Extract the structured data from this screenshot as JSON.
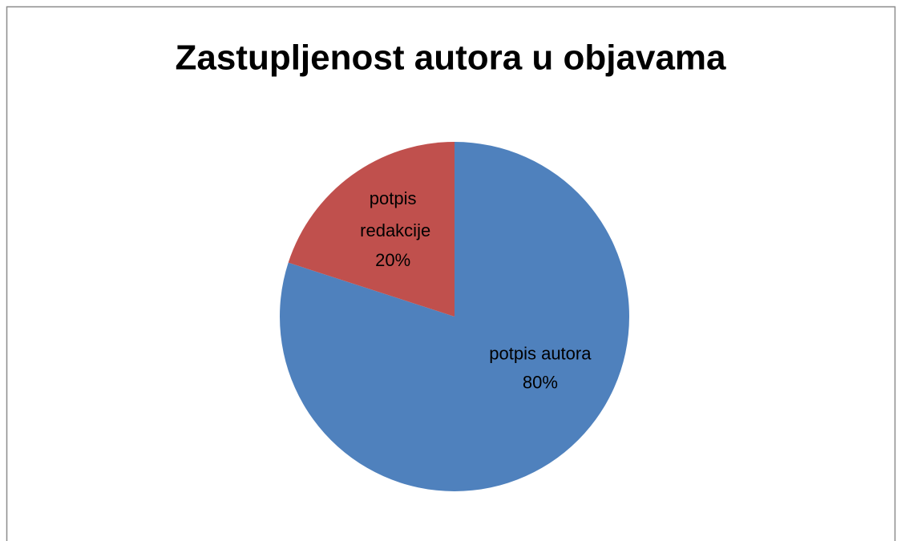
{
  "chart_data": {
    "type": "pie",
    "title": "Zastupljenost autora u objavama",
    "categories": [
      "potpis autora",
      "potpis redakcije"
    ],
    "values": [
      80,
      20
    ],
    "value_labels": [
      "80%",
      "20%"
    ],
    "colors": [
      "#4f81bd",
      "#c0504d"
    ]
  }
}
